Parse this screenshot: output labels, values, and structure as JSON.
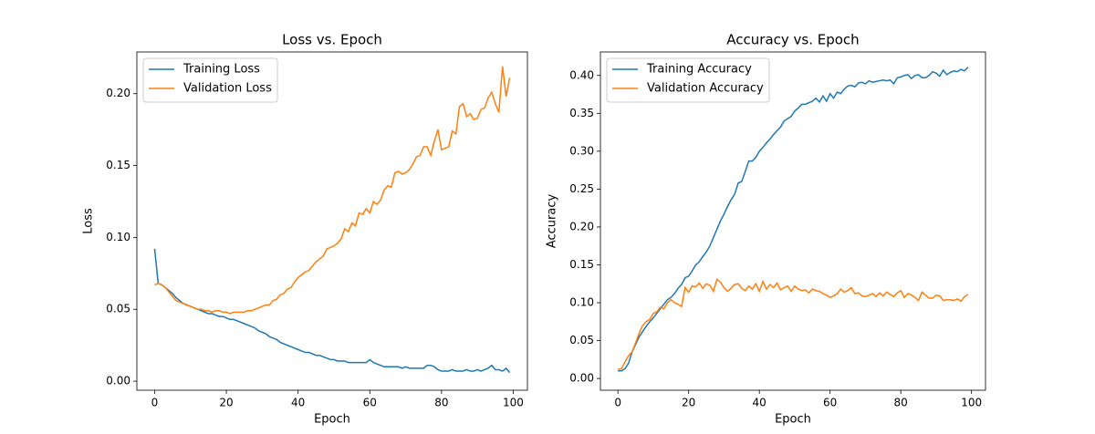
{
  "chart_data": [
    {
      "type": "line",
      "title": "Loss vs. Epoch",
      "x_label": "Epoch",
      "y_label": "Loss",
      "legend": "upper left",
      "x": [
        0,
        1,
        2,
        3,
        4,
        5,
        6,
        7,
        8,
        9,
        10,
        11,
        12,
        13,
        14,
        15,
        16,
        17,
        18,
        19,
        20,
        21,
        22,
        23,
        24,
        25,
        26,
        27,
        28,
        29,
        30,
        31,
        32,
        33,
        34,
        35,
        36,
        37,
        38,
        39,
        40,
        41,
        42,
        43,
        44,
        45,
        46,
        47,
        48,
        49,
        50,
        51,
        52,
        53,
        54,
        55,
        56,
        57,
        58,
        59,
        60,
        61,
        62,
        63,
        64,
        65,
        66,
        67,
        68,
        69,
        70,
        71,
        72,
        73,
        74,
        75,
        76,
        77,
        78,
        79,
        80,
        81,
        82,
        83,
        84,
        85,
        86,
        87,
        88,
        89,
        90,
        91,
        92,
        93,
        94,
        95,
        96,
        97,
        98,
        99
      ],
      "series": [
        {
          "name": "Training Loss",
          "color": "#1f77b4",
          "values": [
            0.092,
            0.068,
            0.067,
            0.065,
            0.063,
            0.061,
            0.058,
            0.056,
            0.054,
            0.053,
            0.052,
            0.051,
            0.05,
            0.049,
            0.048,
            0.047,
            0.047,
            0.046,
            0.045,
            0.045,
            0.044,
            0.043,
            0.043,
            0.042,
            0.041,
            0.04,
            0.039,
            0.038,
            0.037,
            0.035,
            0.034,
            0.033,
            0.031,
            0.03,
            0.029,
            0.027,
            0.026,
            0.025,
            0.024,
            0.023,
            0.022,
            0.021,
            0.02,
            0.02,
            0.019,
            0.018,
            0.018,
            0.017,
            0.016,
            0.015,
            0.015,
            0.014,
            0.014,
            0.014,
            0.013,
            0.013,
            0.013,
            0.013,
            0.013,
            0.013,
            0.015,
            0.013,
            0.012,
            0.011,
            0.01,
            0.01,
            0.01,
            0.01,
            0.01,
            0.009,
            0.01,
            0.009,
            0.009,
            0.009,
            0.009,
            0.009,
            0.011,
            0.011,
            0.01,
            0.008,
            0.007,
            0.007,
            0.007,
            0.008,
            0.007,
            0.007,
            0.007,
            0.008,
            0.007,
            0.007,
            0.008,
            0.007,
            0.008,
            0.009,
            0.011,
            0.008,
            0.008,
            0.007,
            0.009,
            0.006
          ]
        },
        {
          "name": "Validation Loss",
          "color": "#ff7f0e",
          "values": [
            0.067,
            0.068,
            0.067,
            0.065,
            0.062,
            0.059,
            0.056,
            0.055,
            0.054,
            0.053,
            0.052,
            0.051,
            0.05,
            0.05,
            0.049,
            0.049,
            0.048,
            0.049,
            0.049,
            0.048,
            0.048,
            0.047,
            0.048,
            0.048,
            0.048,
            0.048,
            0.049,
            0.049,
            0.05,
            0.051,
            0.052,
            0.053,
            0.053,
            0.056,
            0.057,
            0.06,
            0.061,
            0.064,
            0.065,
            0.069,
            0.072,
            0.074,
            0.076,
            0.077,
            0.08,
            0.083,
            0.085,
            0.087,
            0.092,
            0.093,
            0.094,
            0.096,
            0.099,
            0.106,
            0.104,
            0.11,
            0.108,
            0.117,
            0.116,
            0.12,
            0.117,
            0.125,
            0.123,
            0.126,
            0.133,
            0.136,
            0.135,
            0.145,
            0.146,
            0.144,
            0.145,
            0.147,
            0.151,
            0.156,
            0.157,
            0.163,
            0.163,
            0.157,
            0.167,
            0.175,
            0.161,
            0.162,
            0.163,
            0.174,
            0.172,
            0.191,
            0.193,
            0.184,
            0.186,
            0.182,
            0.183,
            0.189,
            0.19,
            0.197,
            0.201,
            0.193,
            0.187,
            0.219,
            0.198,
            0.211
          ]
        }
      ],
      "xlim": [
        -4.95,
        103.95
      ],
      "ylim": [
        -0.0063,
        0.229
      ],
      "xticks": [
        0,
        20,
        40,
        60,
        80,
        100
      ],
      "yticks": [
        {
          "value": 0,
          "label": "0.00"
        },
        {
          "value": 0.05,
          "label": "0.05"
        },
        {
          "value": 0.1,
          "label": "0.10"
        },
        {
          "value": 0.15,
          "label": "0.15"
        },
        {
          "value": 0.2,
          "label": "0.20"
        }
      ]
    },
    {
      "type": "line",
      "title": "Accuracy vs. Epoch",
      "x_label": "Epoch",
      "y_label": "Accuracy",
      "legend": "upper left",
      "x": [
        0,
        1,
        2,
        3,
        4,
        5,
        6,
        7,
        8,
        9,
        10,
        11,
        12,
        13,
        14,
        15,
        16,
        17,
        18,
        19,
        20,
        21,
        22,
        23,
        24,
        25,
        26,
        27,
        28,
        29,
        30,
        31,
        32,
        33,
        34,
        35,
        36,
        37,
        38,
        39,
        40,
        41,
        42,
        43,
        44,
        45,
        46,
        47,
        48,
        49,
        50,
        51,
        52,
        53,
        54,
        55,
        56,
        57,
        58,
        59,
        60,
        61,
        62,
        63,
        64,
        65,
        66,
        67,
        68,
        69,
        70,
        71,
        72,
        73,
        74,
        75,
        76,
        77,
        78,
        79,
        80,
        81,
        82,
        83,
        84,
        85,
        86,
        87,
        88,
        89,
        90,
        91,
        92,
        93,
        94,
        95,
        96,
        97,
        98,
        99
      ],
      "series": [
        {
          "name": "Training Accuracy",
          "color": "#1f77b4",
          "values": [
            0.01,
            0.01,
            0.013,
            0.02,
            0.035,
            0.045,
            0.055,
            0.062,
            0.069,
            0.075,
            0.08,
            0.086,
            0.092,
            0.098,
            0.104,
            0.107,
            0.112,
            0.119,
            0.124,
            0.133,
            0.135,
            0.142,
            0.15,
            0.154,
            0.161,
            0.167,
            0.175,
            0.186,
            0.197,
            0.208,
            0.217,
            0.227,
            0.236,
            0.243,
            0.258,
            0.26,
            0.273,
            0.287,
            0.287,
            0.292,
            0.3,
            0.305,
            0.311,
            0.316,
            0.322,
            0.327,
            0.332,
            0.34,
            0.343,
            0.346,
            0.353,
            0.357,
            0.362,
            0.362,
            0.364,
            0.366,
            0.37,
            0.365,
            0.373,
            0.366,
            0.376,
            0.37,
            0.378,
            0.376,
            0.382,
            0.386,
            0.387,
            0.385,
            0.39,
            0.391,
            0.389,
            0.393,
            0.391,
            0.392,
            0.393,
            0.394,
            0.393,
            0.394,
            0.389,
            0.397,
            0.398,
            0.4,
            0.401,
            0.396,
            0.4,
            0.401,
            0.397,
            0.397,
            0.4,
            0.405,
            0.403,
            0.399,
            0.407,
            0.401,
            0.404,
            0.406,
            0.405,
            0.408,
            0.406,
            0.411
          ]
        },
        {
          "name": "Validation Accuracy",
          "color": "#ff7f0e",
          "values": [
            0.012,
            0.013,
            0.022,
            0.03,
            0.035,
            0.047,
            0.06,
            0.07,
            0.075,
            0.078,
            0.086,
            0.088,
            0.094,
            0.092,
            0.1,
            0.104,
            0.1,
            0.098,
            0.095,
            0.12,
            0.114,
            0.122,
            0.121,
            0.126,
            0.119,
            0.125,
            0.123,
            0.115,
            0.131,
            0.127,
            0.12,
            0.115,
            0.119,
            0.124,
            0.125,
            0.119,
            0.116,
            0.122,
            0.118,
            0.125,
            0.115,
            0.128,
            0.118,
            0.124,
            0.12,
            0.126,
            0.117,
            0.12,
            0.122,
            0.115,
            0.122,
            0.118,
            0.116,
            0.117,
            0.113,
            0.118,
            0.116,
            0.115,
            0.112,
            0.11,
            0.107,
            0.109,
            0.112,
            0.118,
            0.114,
            0.116,
            0.12,
            0.112,
            0.113,
            0.109,
            0.108,
            0.11,
            0.112,
            0.108,
            0.113,
            0.109,
            0.114,
            0.111,
            0.108,
            0.113,
            0.116,
            0.107,
            0.112,
            0.11,
            0.107,
            0.103,
            0.114,
            0.11,
            0.106,
            0.106,
            0.11,
            0.109,
            0.103,
            0.104,
            0.104,
            0.103,
            0.105,
            0.102,
            0.108,
            0.111
          ]
        }
      ],
      "xlim": [
        -4.95,
        103.95
      ],
      "ylim": [
        -0.0155,
        0.431
      ],
      "xticks": [
        0,
        20,
        40,
        60,
        80,
        100
      ],
      "yticks": [
        {
          "value": 0,
          "label": "0.00"
        },
        {
          "value": 0.05,
          "label": "0.05"
        },
        {
          "value": 0.1,
          "label": "0.10"
        },
        {
          "value": 0.15,
          "label": "0.15"
        },
        {
          "value": 0.2,
          "label": "0.20"
        },
        {
          "value": 0.25,
          "label": "0.25"
        },
        {
          "value": 0.3,
          "label": "0.30"
        },
        {
          "value": 0.35,
          "label": "0.35"
        },
        {
          "value": 0.4,
          "label": "0.40"
        }
      ]
    }
  ]
}
